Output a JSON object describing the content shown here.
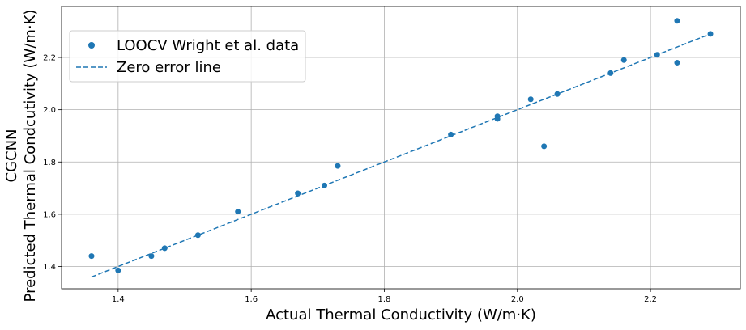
{
  "chart_data": {
    "type": "scatter",
    "xlabel": "Actual Thermal Conductivity (W/m·K)",
    "ylabel_line1": "CGCNN",
    "ylabel_line2": "Predicted Thermal Condcutivity (W/m·K)",
    "xlim": [
      1.315,
      2.335
    ],
    "ylim": [
      1.315,
      2.395
    ],
    "xticks": [
      "1.4",
      "1.6",
      "1.8",
      "2.0",
      "2.2"
    ],
    "yticks": [
      "1.4",
      "1.6",
      "1.8",
      "2.0",
      "2.2"
    ],
    "grid": true,
    "legend_position": "top-left",
    "series": [
      {
        "name": "LOOCV Wright et al. data",
        "kind": "scatter",
        "color": "#1f77b4",
        "points": [
          [
            1.36,
            1.44
          ],
          [
            1.4,
            1.385
          ],
          [
            1.45,
            1.44
          ],
          [
            1.47,
            1.47
          ],
          [
            1.52,
            1.52
          ],
          [
            1.58,
            1.61
          ],
          [
            1.67,
            1.68
          ],
          [
            1.71,
            1.71
          ],
          [
            1.73,
            1.785
          ],
          [
            1.9,
            1.905
          ],
          [
            1.97,
            1.965
          ],
          [
            1.97,
            1.975
          ],
          [
            2.02,
            2.04
          ],
          [
            2.04,
            1.86
          ],
          [
            2.06,
            2.06
          ],
          [
            2.14,
            2.14
          ],
          [
            2.16,
            2.19
          ],
          [
            2.21,
            2.21
          ],
          [
            2.24,
            2.18
          ],
          [
            2.24,
            2.34
          ],
          [
            2.29,
            2.29
          ]
        ]
      },
      {
        "name": "Zero error line",
        "kind": "line",
        "style": "dashed",
        "color": "#1f77b4",
        "points": [
          [
            1.36,
            1.36
          ],
          [
            2.29,
            2.29
          ]
        ]
      }
    ]
  }
}
